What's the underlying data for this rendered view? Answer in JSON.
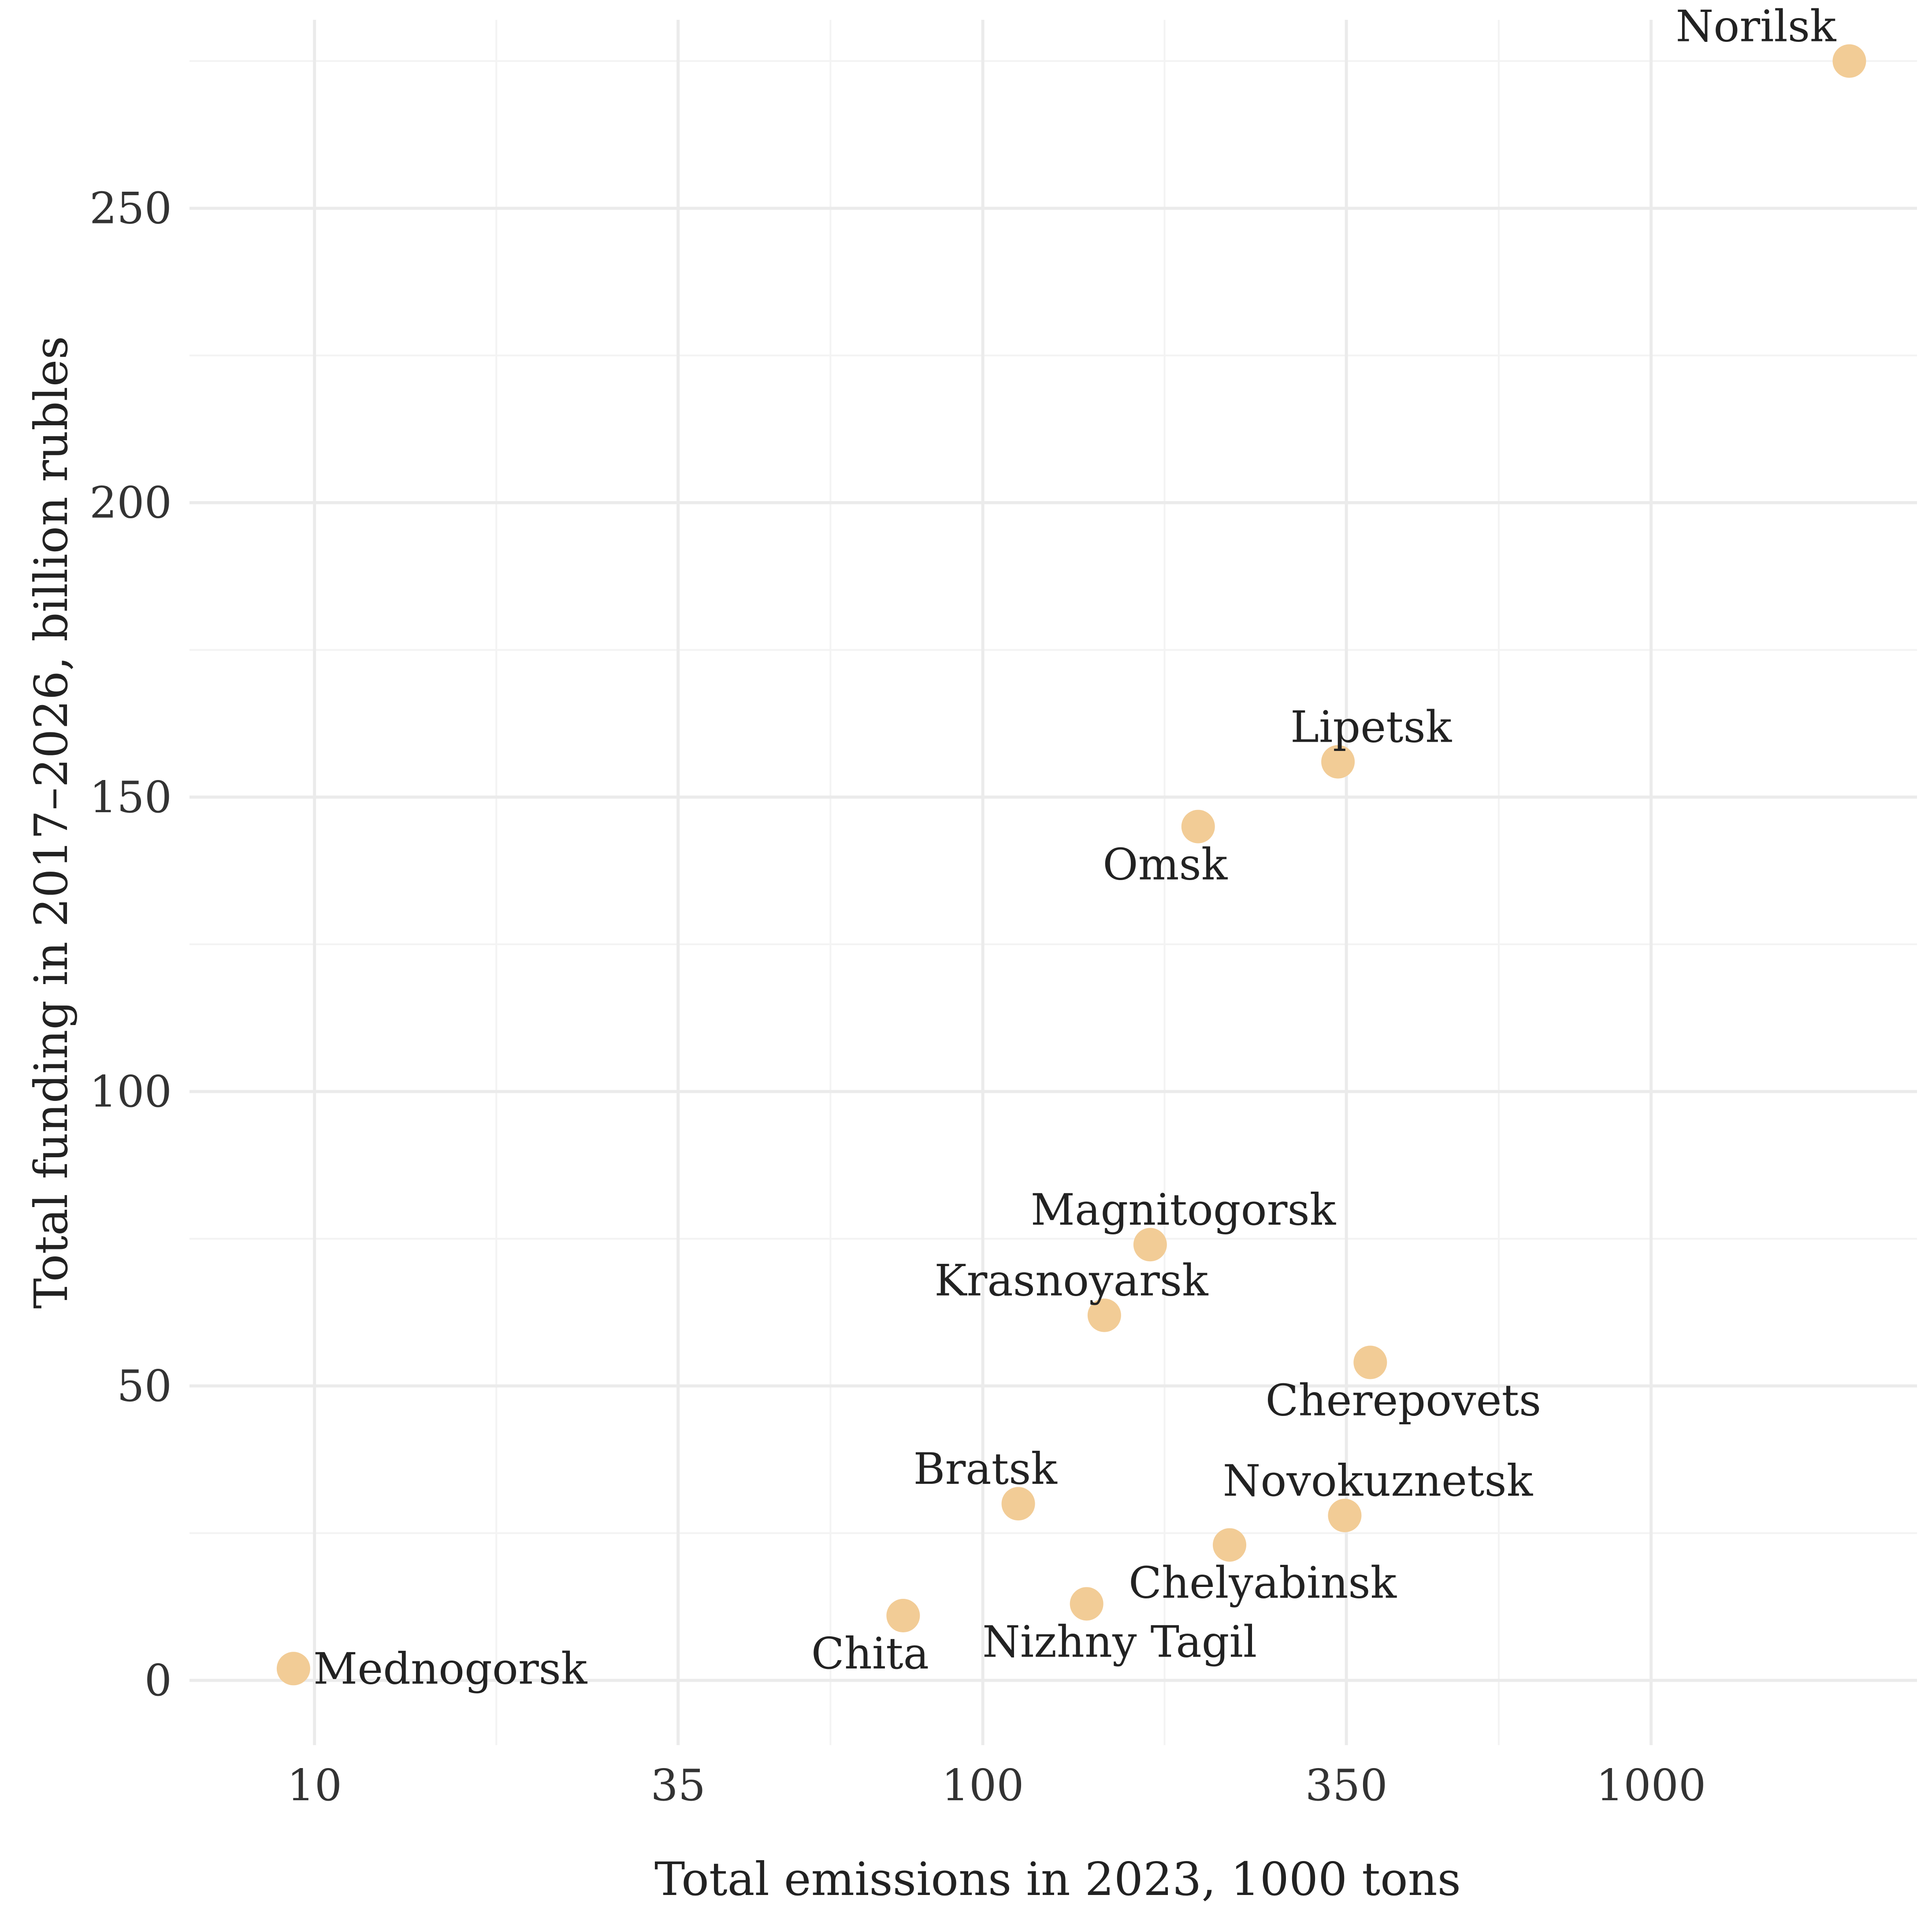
{
  "chart_data": {
    "type": "scatter",
    "title": "",
    "xlabel": "Total emissions in 2023, 1000 tons",
    "ylabel": "Total funding in 2017–2026, billion rubles",
    "x_scale": "log",
    "xlim": [
      6.5,
      2500
    ],
    "ylim": [
      -11,
      282
    ],
    "x_ticks": [
      10,
      35,
      100,
      350,
      1000
    ],
    "x_tick_labels": [
      "10",
      "35",
      "100",
      "350",
      "1000"
    ],
    "y_ticks": [
      0,
      50,
      100,
      150,
      200,
      250
    ],
    "y_tick_labels": [
      "0",
      "50",
      "100",
      "150",
      "200",
      "250"
    ],
    "grid": true,
    "point_color": "#f2cc96",
    "points": [
      {
        "label": "Norilsk",
        "x": 1980,
        "y": 275,
        "label_pos": "upper-left"
      },
      {
        "label": "Lipetsk",
        "x": 340,
        "y": 156,
        "label_pos": "above"
      },
      {
        "label": "Omsk",
        "x": 210,
        "y": 145,
        "label_pos": "below-left"
      },
      {
        "label": "Magnitogorsk",
        "x": 178,
        "y": 74,
        "label_pos": "above"
      },
      {
        "label": "Krasnoyarsk",
        "x": 152,
        "y": 62,
        "label_pos": "above-left"
      },
      {
        "label": "Cherepovets",
        "x": 380,
        "y": 54,
        "label_pos": "below"
      },
      {
        "label": "Bratsk",
        "x": 113,
        "y": 30,
        "label_pos": "above-left"
      },
      {
        "label": "Novokuznetsk",
        "x": 348,
        "y": 28,
        "label_pos": "above"
      },
      {
        "label": "Chelyabinsk",
        "x": 234,
        "y": 23,
        "label_pos": "below"
      },
      {
        "label": "Nizhny Tagil",
        "x": 143,
        "y": 13,
        "label_pos": "below"
      },
      {
        "label": "Chita",
        "x": 76,
        "y": 11,
        "label_pos": "below-left"
      },
      {
        "label": "Mednogorsk",
        "x": 9.3,
        "y": 2,
        "label_pos": "right"
      }
    ]
  }
}
